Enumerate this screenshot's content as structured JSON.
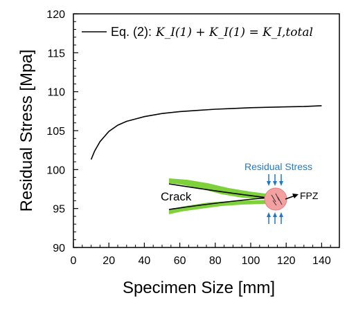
{
  "chart_data": {
    "type": "line",
    "xlabel": "Specimen Size [mm]",
    "ylabel": "Residual Stress [Mpa]",
    "xlim": [
      0,
      150
    ],
    "ylim": [
      90,
      120
    ],
    "xticks": [
      0,
      20,
      40,
      60,
      80,
      100,
      120,
      140
    ],
    "yticks": [
      90,
      95,
      100,
      105,
      110,
      115,
      120
    ],
    "grid": false,
    "legend_position": "top-left",
    "series": [
      {
        "name": "Eq. (2): K_I(1) + K_I(1) = K_I,total",
        "legend_prefix": "Eq. (2): ",
        "legend_equation": "K_I(1) + K_I(1) = K_I,total",
        "color": "#000000",
        "x": [
          10,
          12,
          15,
          20,
          25,
          30,
          35,
          40,
          50,
          60,
          70,
          80,
          90,
          100,
          110,
          120,
          130,
          140
        ],
        "y": [
          101.3,
          102.4,
          103.6,
          104.9,
          105.7,
          106.2,
          106.5,
          106.8,
          107.2,
          107.45,
          107.6,
          107.75,
          107.85,
          107.95,
          108.0,
          108.05,
          108.1,
          108.2
        ]
      }
    ],
    "annotations": {
      "crack_label": "Crack",
      "stress_label": "Residual Stress",
      "fpz_label": "FPZ",
      "crack_color": "#7ed13a",
      "stress_color": "#1f78c8",
      "fpz_color": "#f4a0a0"
    }
  }
}
